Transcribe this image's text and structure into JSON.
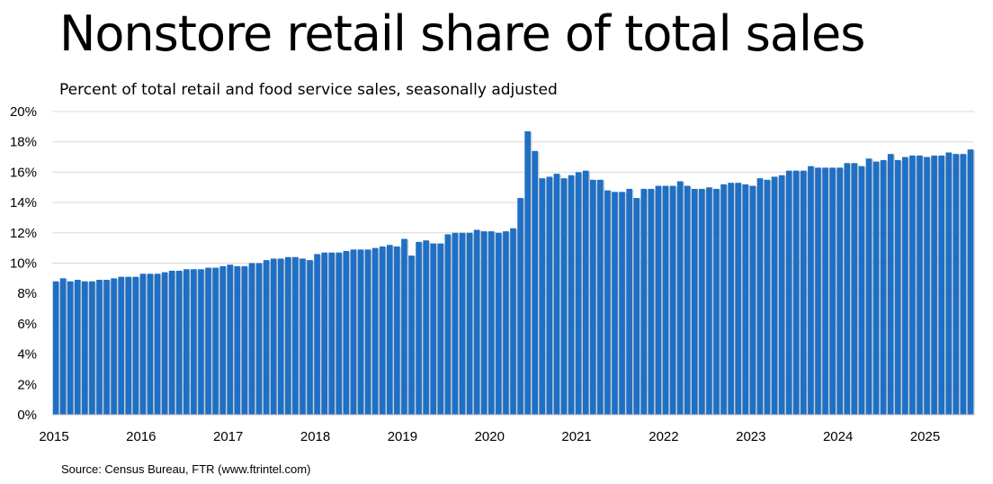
{
  "chart_data": {
    "type": "bar",
    "title": "Nonstore retail share of total sales",
    "subtitle": "Percent of total retail and food service sales, seasonally adjusted",
    "source": "Source: Census Bureau, FTR (www.ftrintel.com)",
    "xlabel": "",
    "ylabel": "",
    "ylim": [
      0,
      20
    ],
    "yticks": [
      0,
      2,
      4,
      6,
      8,
      10,
      12,
      14,
      16,
      18,
      20
    ],
    "ytick_labels": [
      "0%",
      "2%",
      "4%",
      "6%",
      "8%",
      "10%",
      "12%",
      "14%",
      "16%",
      "18%",
      "20%"
    ],
    "xtick_labels": [
      "2015",
      "2016",
      "2017",
      "2018",
      "2019",
      "2020",
      "2021",
      "2022",
      "2023",
      "2024",
      "2025"
    ],
    "start": "2015-01",
    "frequency": "monthly",
    "bar_color": "#1f6fc4",
    "values": [
      8.8,
      9.0,
      8.8,
      8.9,
      8.8,
      8.8,
      8.9,
      8.9,
      9.0,
      9.1,
      9.1,
      9.1,
      9.3,
      9.3,
      9.3,
      9.4,
      9.5,
      9.5,
      9.6,
      9.6,
      9.6,
      9.7,
      9.7,
      9.8,
      9.9,
      9.8,
      9.8,
      10.0,
      10.0,
      10.2,
      10.3,
      10.3,
      10.4,
      10.4,
      10.3,
      10.2,
      10.6,
      10.7,
      10.7,
      10.7,
      10.8,
      10.9,
      10.9,
      10.9,
      11.0,
      11.1,
      11.2,
      11.1,
      11.6,
      10.5,
      11.4,
      11.5,
      11.3,
      11.3,
      11.9,
      12.0,
      12.0,
      12.0,
      12.2,
      12.1,
      12.1,
      12.0,
      12.1,
      12.3,
      14.3,
      18.7,
      17.4,
      15.6,
      15.7,
      15.9,
      15.6,
      15.8,
      16.0,
      16.1,
      15.5,
      15.5,
      14.8,
      14.7,
      14.7,
      14.9,
      14.3,
      14.9,
      14.9,
      15.1,
      15.1,
      15.1,
      15.4,
      15.1,
      14.9,
      14.9,
      15.0,
      14.9,
      15.2,
      15.3,
      15.3,
      15.2,
      15.1,
      15.6,
      15.5,
      15.7,
      15.8,
      16.1,
      16.1,
      16.1,
      16.4,
      16.3,
      16.3,
      16.3,
      16.3,
      16.6,
      16.6,
      16.4,
      16.9,
      16.7,
      16.8,
      17.2,
      16.8,
      17.0,
      17.1,
      17.1,
      17.0,
      17.1,
      17.1,
      17.3,
      17.2,
      17.2,
      17.5
    ]
  }
}
